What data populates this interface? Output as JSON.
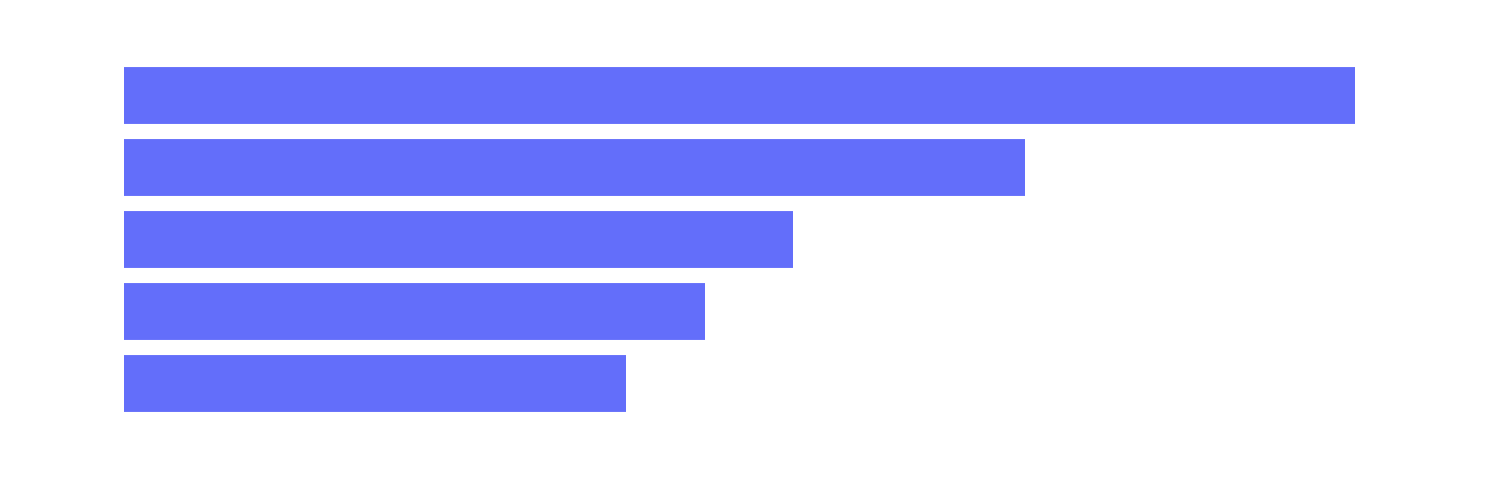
{
  "chart_data": {
    "type": "bar",
    "orientation": "horizontal",
    "values": [
      1231,
      901,
      669,
      581,
      502
    ],
    "color": "#636efa",
    "xlim": [
      0,
      1296
    ]
  }
}
